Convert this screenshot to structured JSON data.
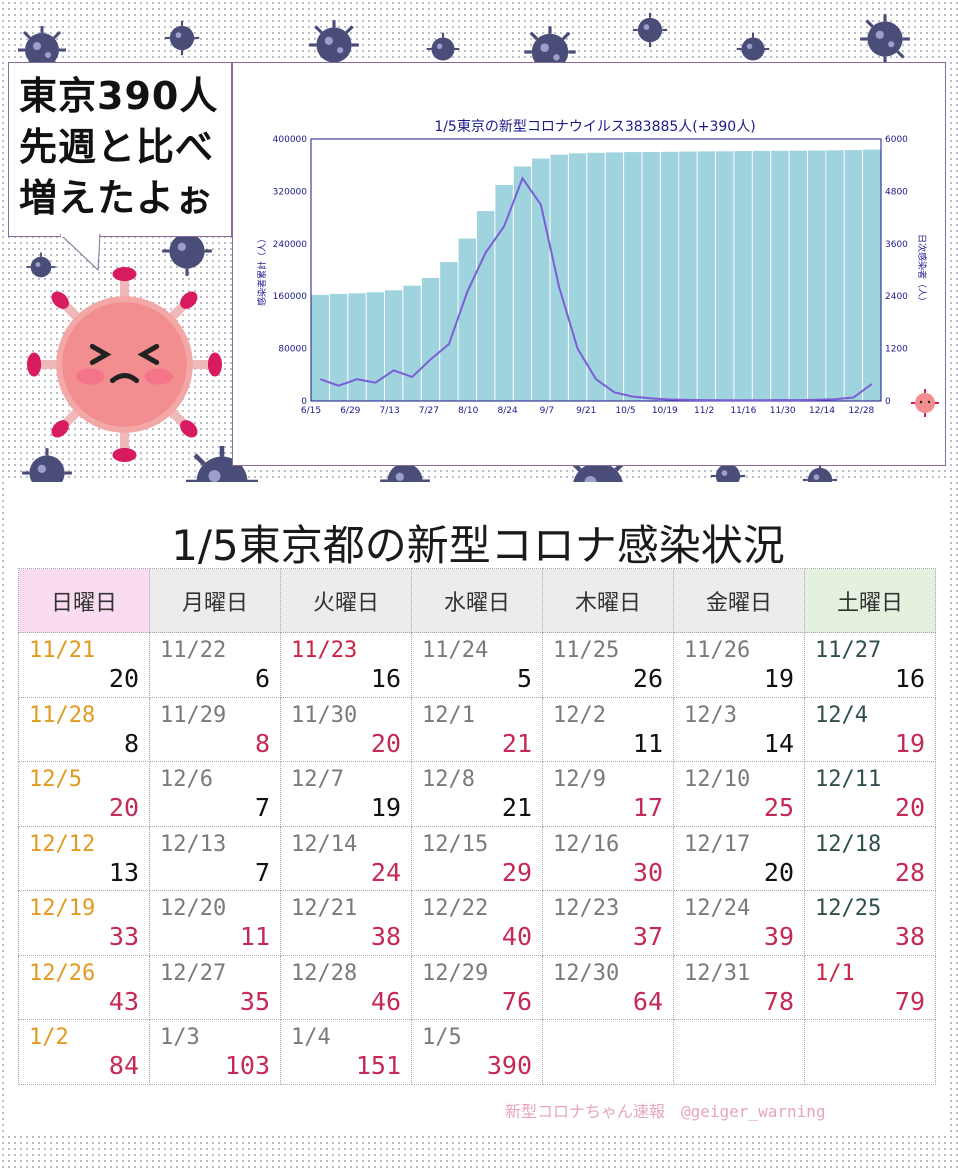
{
  "callout": {
    "lines": [
      "東京390人",
      "先週と比べ",
      "増えたよぉ"
    ]
  },
  "chart_data": {
    "type": "bar",
    "title": "1/5東京の新型コロナウイルス383885人(+390人)",
    "ylabel": "感染者累計（人）",
    "y2label": "日次感染者（人）",
    "x_ticks": [
      "6/15",
      "6/29",
      "7/13",
      "7/27",
      "8/10",
      "8/24",
      "9/7",
      "9/21",
      "10/5",
      "10/19",
      "11/2",
      "11/16",
      "11/30",
      "12/14",
      "12/28"
    ],
    "left_ticks": [
      "0",
      "80000",
      "160000",
      "240000",
      "320000",
      "400000"
    ],
    "right_ticks": [
      "0",
      "1200",
      "2400",
      "3600",
      "4800",
      "6000"
    ],
    "ylim": [
      0,
      400000
    ],
    "y2lim": [
      0,
      6000
    ],
    "series": [
      {
        "kind": "bar",
        "axis": "left",
        "color": "#9fd3dd",
        "values": [
          162000,
          163500,
          164500,
          166000,
          169000,
          176000,
          188000,
          212000,
          248000,
          290000,
          330000,
          358000,
          370000,
          376000,
          378000,
          379000,
          379500,
          380000,
          380200,
          380500,
          380700,
          381000,
          381200,
          381500,
          381800,
          382000,
          382200,
          382500,
          382800,
          383000,
          383885
        ]
      },
      {
        "kind": "line",
        "axis": "right",
        "color": "#7b5fd6",
        "values": [
          500,
          350,
          500,
          420,
          700,
          550,
          950,
          1300,
          2500,
          3400,
          4000,
          5100,
          4500,
          2600,
          1200,
          500,
          200,
          100,
          60,
          35,
          25,
          20,
          18,
          16,
          19,
          22,
          20,
          28,
          40,
          80,
          390
        ]
      }
    ]
  },
  "table": {
    "title": "1/5東京都の新型コロナ感染状況",
    "headers": [
      "日曜日",
      "月曜日",
      "火曜日",
      "水曜日",
      "木曜日",
      "金曜日",
      "土曜日"
    ],
    "rows": [
      [
        {
          "d": "11/21",
          "n": "20"
        },
        {
          "d": "11/22",
          "n": "6"
        },
        {
          "d": "11/23",
          "n": "16"
        },
        {
          "d": "11/24",
          "n": "5"
        },
        {
          "d": "11/25",
          "n": "26"
        },
        {
          "d": "11/26",
          "n": "19"
        },
        {
          "d": "11/27",
          "n": "16"
        }
      ],
      [
        {
          "d": "11/28",
          "n": "8"
        },
        {
          "d": "11/29",
          "n": "8"
        },
        {
          "d": "11/30",
          "n": "20"
        },
        {
          "d": "12/1",
          "n": "21"
        },
        {
          "d": "12/2",
          "n": "11"
        },
        {
          "d": "12/3",
          "n": "14"
        },
        {
          "d": "12/4",
          "n": "19"
        }
      ],
      [
        {
          "d": "12/5",
          "n": "20"
        },
        {
          "d": "12/6",
          "n": "7"
        },
        {
          "d": "12/7",
          "n": "19"
        },
        {
          "d": "12/8",
          "n": "21"
        },
        {
          "d": "12/9",
          "n": "17"
        },
        {
          "d": "12/10",
          "n": "25"
        },
        {
          "d": "12/11",
          "n": "20"
        }
      ],
      [
        {
          "d": "12/12",
          "n": "13"
        },
        {
          "d": "12/13",
          "n": "7"
        },
        {
          "d": "12/14",
          "n": "24"
        },
        {
          "d": "12/15",
          "n": "29"
        },
        {
          "d": "12/16",
          "n": "30"
        },
        {
          "d": "12/17",
          "n": "20"
        },
        {
          "d": "12/18",
          "n": "28"
        }
      ],
      [
        {
          "d": "12/19",
          "n": "33"
        },
        {
          "d": "12/20",
          "n": "11"
        },
        {
          "d": "12/21",
          "n": "38"
        },
        {
          "d": "12/22",
          "n": "40"
        },
        {
          "d": "12/23",
          "n": "37"
        },
        {
          "d": "12/24",
          "n": "39"
        },
        {
          "d": "12/25",
          "n": "38"
        }
      ],
      [
        {
          "d": "12/26",
          "n": "43"
        },
        {
          "d": "12/27",
          "n": "35"
        },
        {
          "d": "12/28",
          "n": "46"
        },
        {
          "d": "12/29",
          "n": "76"
        },
        {
          "d": "12/30",
          "n": "64"
        },
        {
          "d": "12/31",
          "n": "78"
        },
        {
          "d": "1/1",
          "n": "79"
        }
      ],
      [
        {
          "d": "1/2",
          "n": "84"
        },
        {
          "d": "1/3",
          "n": "103"
        },
        {
          "d": "1/4",
          "n": "151"
        },
        {
          "d": "1/5",
          "n": "390"
        },
        {
          "d": "",
          "n": ""
        },
        {
          "d": "",
          "n": ""
        },
        {
          "d": "",
          "n": ""
        }
      ]
    ]
  },
  "colors": {
    "sunday_date": "#e09a1f",
    "saturday_date": "#2f4f4f",
    "weekday_date": "#7a7a7a",
    "holiday_date": "#cc2244",
    "increase": "#c42a55",
    "decrease": "#111111"
  },
  "footer": {
    "credit": "新型コロナちゃん速報　@geiger_warning"
  }
}
